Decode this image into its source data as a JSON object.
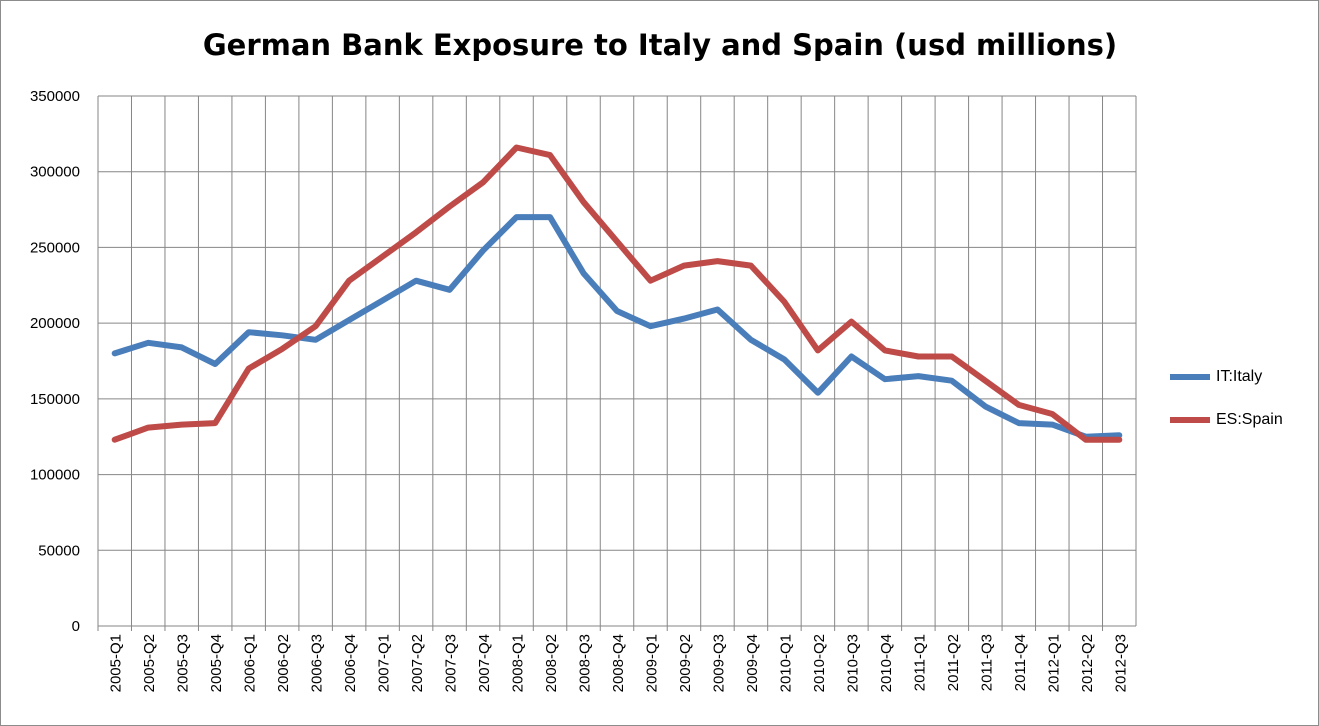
{
  "chart_data": {
    "type": "line",
    "title": "German Bank Exposure to Italy and Spain (usd millions)",
    "xlabel": "",
    "ylabel": "",
    "ylim": [
      0,
      350000
    ],
    "yticks": [
      0,
      50000,
      100000,
      150000,
      200000,
      250000,
      300000,
      350000
    ],
    "grid": true,
    "legend_position": "right",
    "categories": [
      "2005-Q1",
      "2005-Q2",
      "2005-Q3",
      "2005-Q4",
      "2006-Q1",
      "2006-Q2",
      "2006-Q3",
      "2006-Q4",
      "2007-Q1",
      "2007-Q2",
      "2007-Q3",
      "2007-Q4",
      "2008-Q1",
      "2008-Q2",
      "2008-Q3",
      "2008-Q4",
      "2009-Q1",
      "2009-Q2",
      "2009-Q3",
      "2009-Q4",
      "2010-Q1",
      "2010-Q2",
      "2010-Q3",
      "2010-Q4",
      "2011-Q1",
      "2011-Q2",
      "2011-Q3",
      "2011-Q4",
      "2012-Q1",
      "2012-Q2",
      "2012-Q3"
    ],
    "series": [
      {
        "name": "IT:Italy",
        "color": "#4a7ebb",
        "values": [
          180000,
          187000,
          184000,
          173000,
          194000,
          192000,
          189000,
          202000,
          215000,
          228000,
          222000,
          248000,
          270000,
          270000,
          233000,
          208000,
          198000,
          203000,
          209000,
          189000,
          176000,
          154000,
          178000,
          163000,
          165000,
          162000,
          145000,
          134000,
          133000,
          125000,
          126000
        ]
      },
      {
        "name": "ES:Spain",
        "color": "#be4b48",
        "values": [
          123000,
          131000,
          133000,
          134000,
          170000,
          183000,
          198000,
          228000,
          244000,
          260000,
          277000,
          293000,
          316000,
          311000,
          280000,
          254000,
          228000,
          238000,
          241000,
          238000,
          214000,
          182000,
          201000,
          182000,
          178000,
          178000,
          162000,
          146000,
          140000,
          123000,
          123000
        ]
      }
    ]
  }
}
